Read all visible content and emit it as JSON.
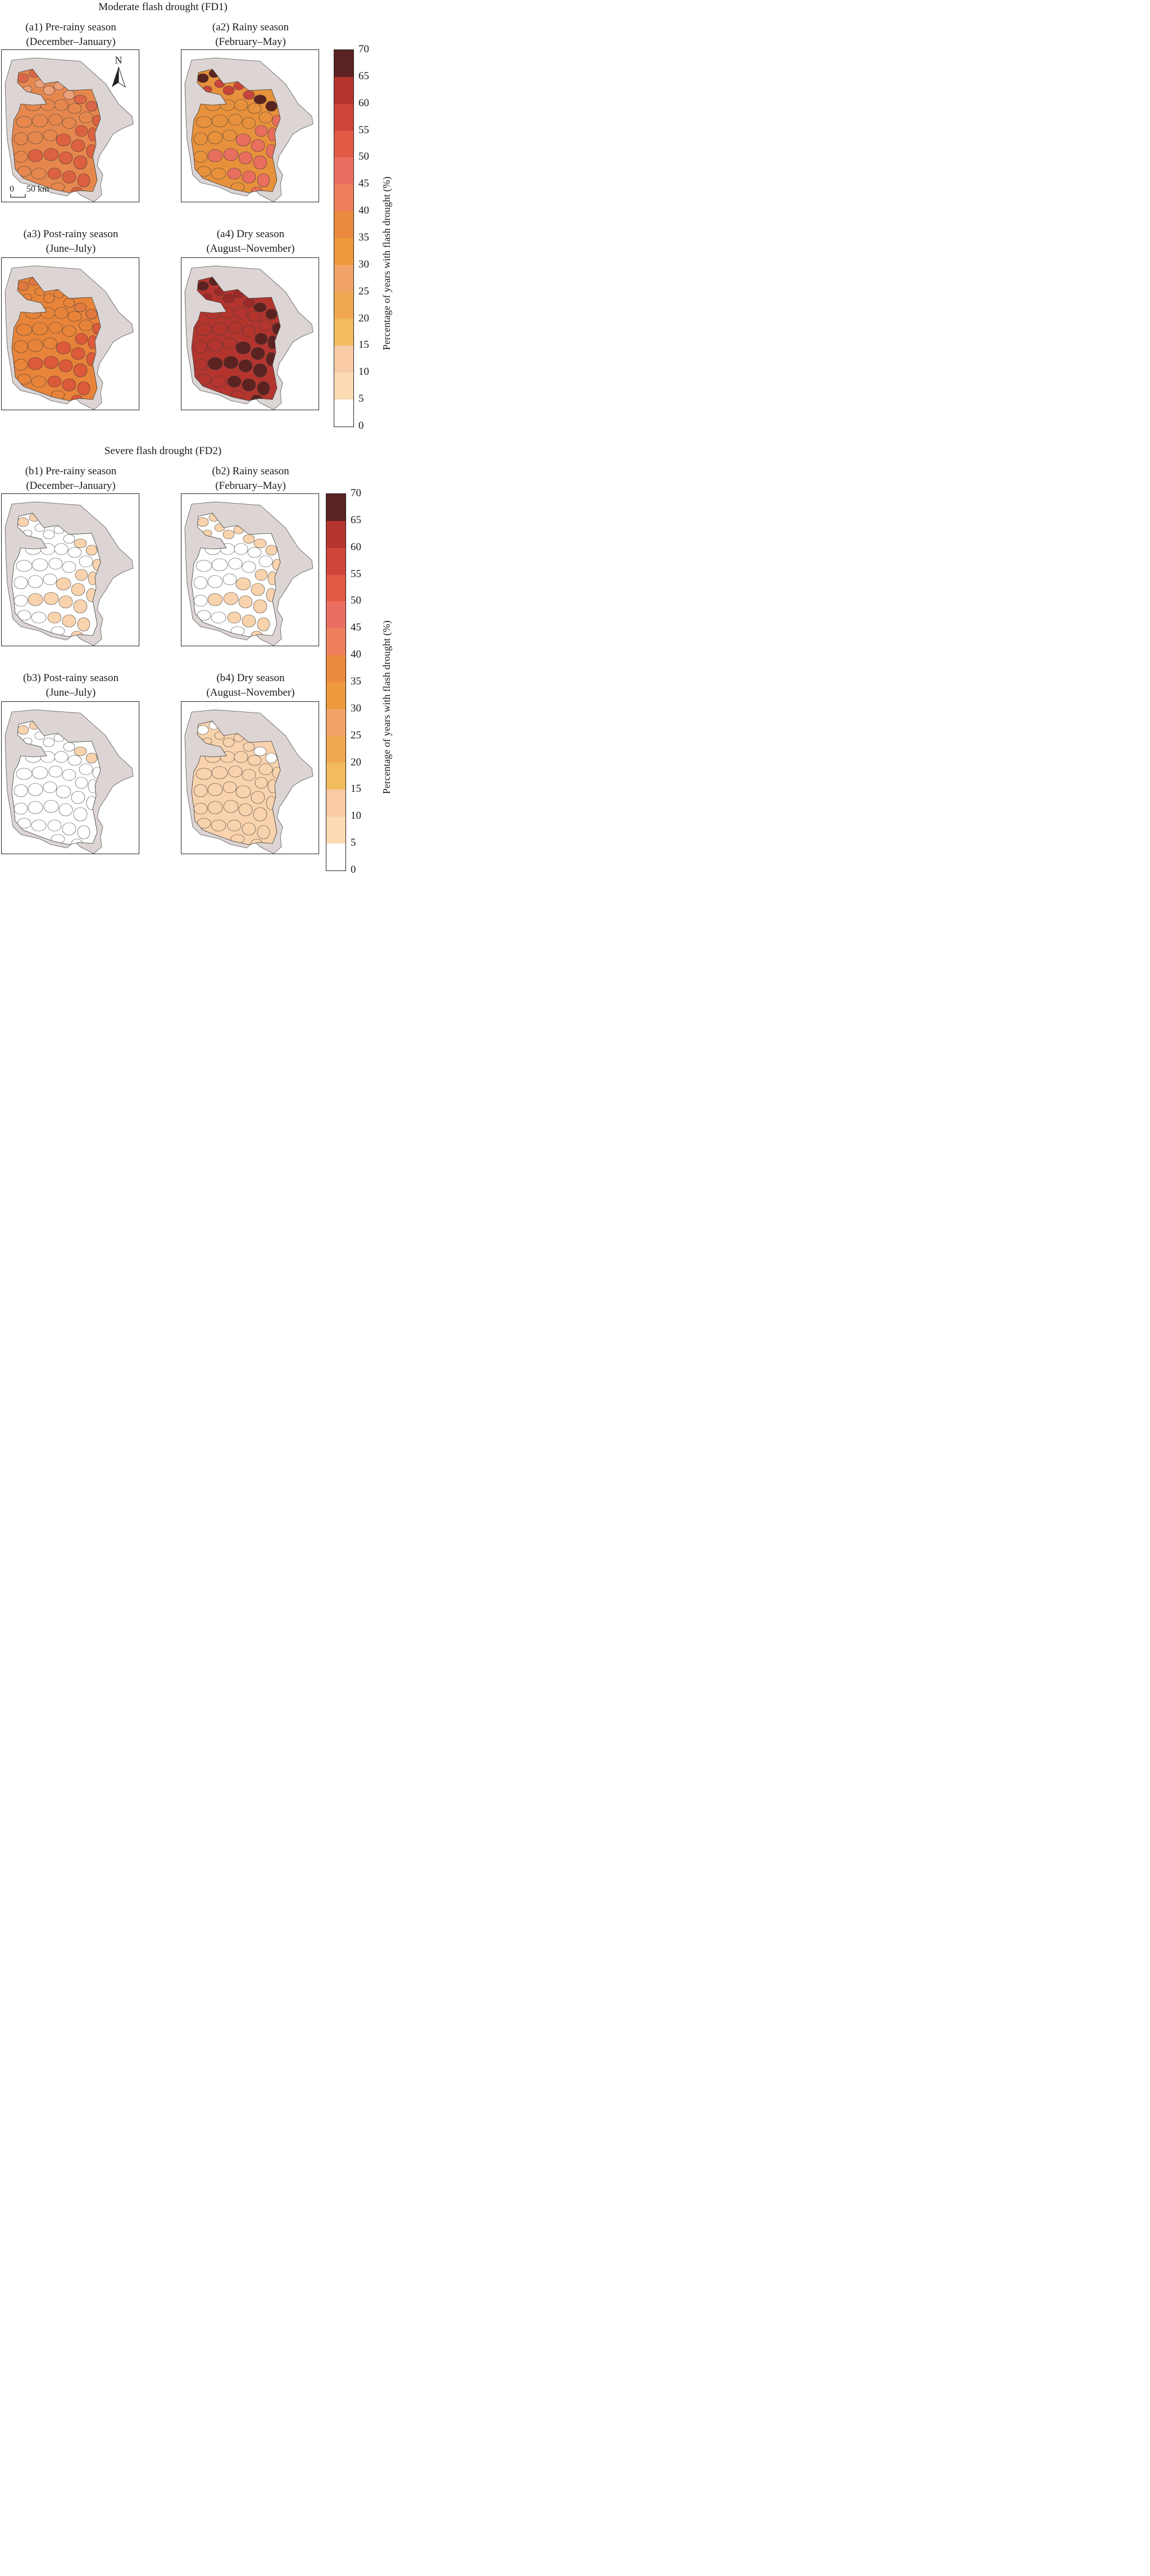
{
  "sections": [
    {
      "title": "Moderate flash drought (FD1)",
      "panels": [
        {
          "line1": "(a1) Pre-rainy season",
          "line2": "(December–January)",
          "base": "#e6884e",
          "coast": "#eca07a",
          "south": "#dc6140",
          "hot": "#dc6748"
        },
        {
          "line1": "(a2) Rainy season",
          "line2": "(February–May)",
          "base": "#e8913c",
          "coast": "#c8453c",
          "south": "#e86e5e",
          "hot": "#5a2220"
        },
        {
          "line1": "(a3) Post-rainy season",
          "line2": "(June–July)",
          "base": "#e8843a",
          "coast": "#e8843a",
          "south": "#dc5a3a",
          "hot": "#e07840"
        },
        {
          "line1": "(a4) Dry season",
          "line2": "(August–November)",
          "base": "#b3352e",
          "coast": "#9a2a28",
          "south": "#5a2220",
          "hot": "#5a2220"
        }
      ]
    },
    {
      "title": "Severe flash drought (FD2)",
      "panels": [
        {
          "line1": "(b1) Pre-rainy season",
          "line2": "(December–January)",
          "base": "#ffffff",
          "coast": "#ffffff",
          "south": "#f9d3ad",
          "hot": "#f9d3ad"
        },
        {
          "line1": "(b2) Rainy season",
          "line2": "(February–May)",
          "base": "#ffffff",
          "coast": "#f9d3ad",
          "south": "#f9d3ad",
          "hot": "#f9d3ad"
        },
        {
          "line1": "(b3) Post-rainy season",
          "line2": "(June–July)",
          "base": "#ffffff",
          "coast": "#ffffff",
          "south": "#ffffff",
          "hot": "#f9d3ad"
        },
        {
          "line1": "(b4) Dry season",
          "line2": "(August–November)",
          "base": "#f9d3ad",
          "coast": "#f9d3ad",
          "south": "#f9d3ad",
          "hot": "#ffffff"
        }
      ]
    }
  ],
  "legend": {
    "title": "Percentage of years with flash drought (%)",
    "ticks": [
      "70",
      "65",
      "60",
      "55",
      "50",
      "45",
      "40",
      "35",
      "30",
      "25",
      "20",
      "15",
      "10",
      "5",
      "0"
    ],
    "colors": [
      "#5a2220",
      "#b3352e",
      "#d0453a",
      "#e25a44",
      "#eb6e62",
      "#ed7f5a",
      "#ea8a3e",
      "#ee9a3c",
      "#f2a468",
      "#f0a850",
      "#f1bb5e",
      "#f8cba6",
      "#fbdab4",
      "#ffffff"
    ]
  },
  "map": {
    "north_label": "N",
    "scale_zero": "0",
    "scale_label": "50 km",
    "outside_color": "#dcd5d4"
  }
}
